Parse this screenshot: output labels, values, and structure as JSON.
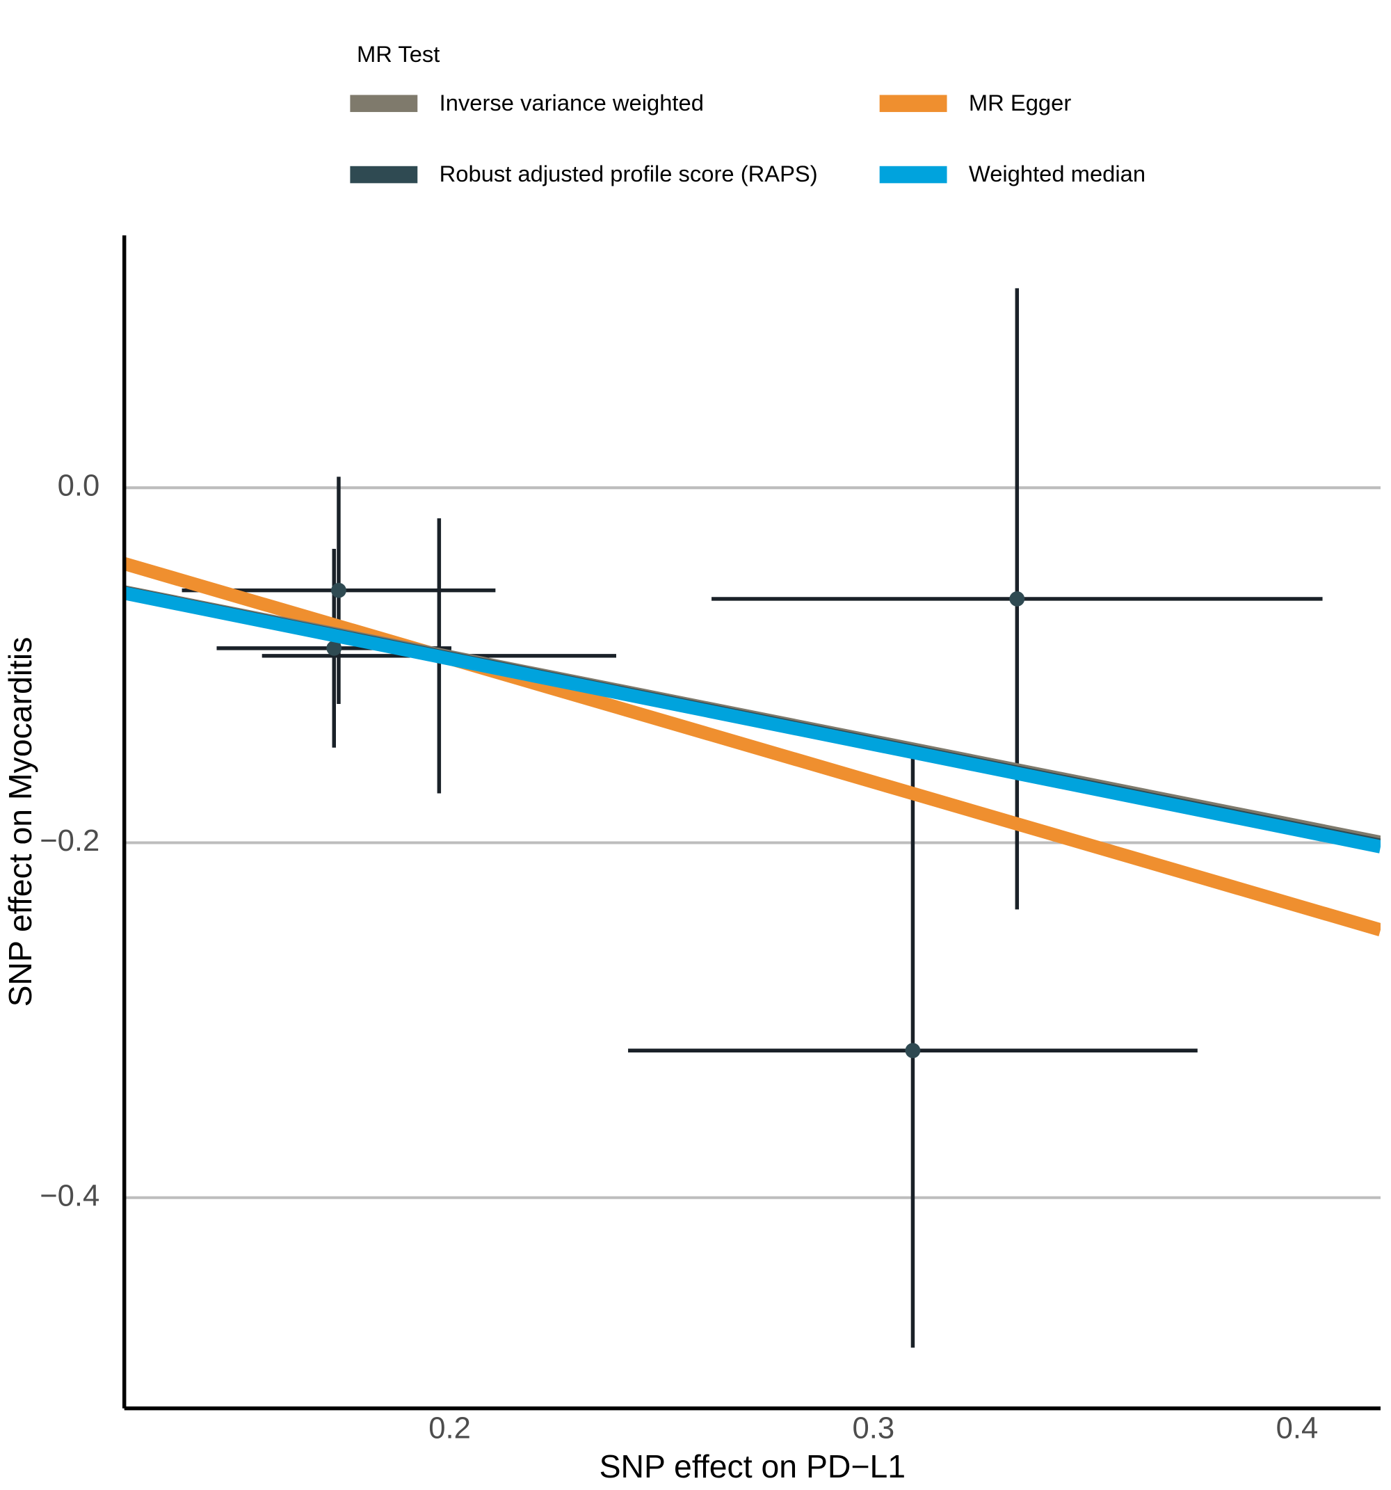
{
  "chart_data": {
    "type": "mr-scatter",
    "legend_title": "MR Test",
    "x_label": "SNP effect on PD−L1",
    "y_label": "SNP effect on Myocarditis",
    "xlim": [
      0.1232,
      0.4197
    ],
    "ylim": [
      -0.5187,
      0.1422
    ],
    "xticks": [
      0.2,
      0.3,
      0.4
    ],
    "yticks": [
      {
        "value": 0,
        "label": "0.0"
      },
      {
        "value": -0.2,
        "label": "−0.2"
      },
      {
        "value": -0.4,
        "label": "−0.4"
      }
    ],
    "grid": true,
    "points": {
      "color": "#2f4a52",
      "bar_color": "#1a2128",
      "x": [
        0.1738,
        0.1727,
        0.1975,
        0.3339,
        0.3093
      ],
      "values": [
        -0.0578,
        -0.0904,
        -0.0947,
        -0.0626,
        -0.3171
      ],
      "xerr": [
        0.037,
        0.0277,
        0.0418,
        0.0721,
        0.0672
      ],
      "yerr": [
        0.064,
        0.056,
        0.0775,
        0.175,
        0.1674
      ]
    },
    "series": [
      {
        "name": "Inverse variance weighted",
        "color": "#7f7a6c",
        "intercept": 0,
        "slope": -0.476
      },
      {
        "name": "MR Egger",
        "color": "#ef8f2f",
        "intercept": 0.043,
        "slope": -0.696
      },
      {
        "name": "Robust adjusted profile score (RAPS)",
        "color": "#2f4a52",
        "intercept": 0,
        "slope": -0.48
      },
      {
        "name": "Weighted median",
        "color": "#00a3dd",
        "intercept": 0,
        "slope": -0.482
      }
    ]
  }
}
